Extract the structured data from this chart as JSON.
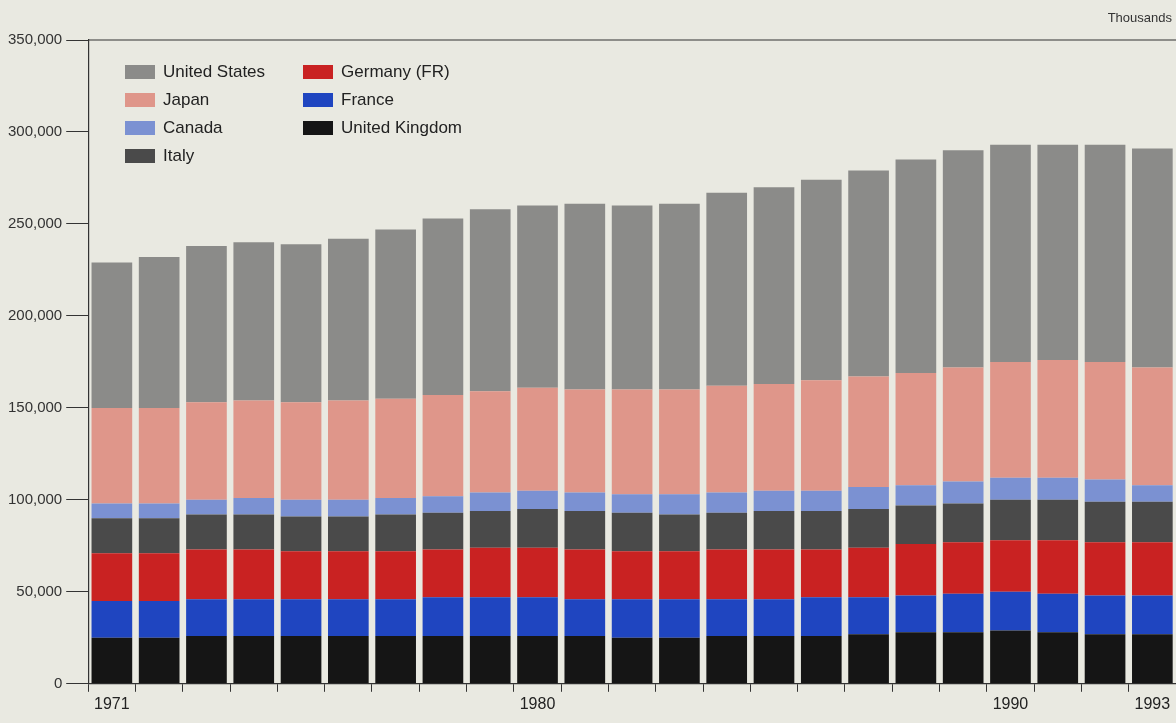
{
  "chart_data": {
    "type": "bar",
    "stacked": true,
    "legend": "top left",
    "grid": false,
    "annotations": [
      "Thousands"
    ],
    "categories": [
      "1971",
      null,
      null,
      null,
      null,
      null,
      null,
      null,
      null,
      "1980",
      null,
      null,
      null,
      null,
      null,
      null,
      null,
      null,
      null,
      "1990",
      null,
      null,
      "1993"
    ],
    "ylim": [
      0,
      350000
    ],
    "yticks": [
      {
        "value": 0,
        "label": "0"
      },
      {
        "value": 50000,
        "label": "50,000"
      },
      {
        "value": 100000,
        "label": "100,000"
      },
      {
        "value": 150000,
        "label": "150,000"
      },
      {
        "value": 200000,
        "label": "200,000"
      },
      {
        "value": 250000,
        "label": "250,000"
      },
      {
        "value": 300000,
        "label": "300,000"
      },
      {
        "value": 350000,
        "label": "350,000"
      }
    ],
    "series": [
      {
        "name": "United Kingdom",
        "color": "#151515",
        "values": [
          25000,
          25000,
          26000,
          26000,
          26000,
          26000,
          26000,
          26000,
          26000,
          26000,
          26000,
          25000,
          25000,
          26000,
          26000,
          26000,
          27000,
          28000,
          28000,
          29000,
          28000,
          27000,
          27000
        ]
      },
      {
        "name": "France",
        "color": "#1f45c0",
        "values": [
          20000,
          20000,
          20000,
          20000,
          20000,
          20000,
          20000,
          21000,
          21000,
          21000,
          20000,
          21000,
          21000,
          20000,
          20000,
          21000,
          20000,
          20000,
          21000,
          21000,
          21000,
          21000,
          21000
        ]
      },
      {
        "name": "Germany (FR)",
        "color": "#c92222",
        "values": [
          26000,
          26000,
          27000,
          27000,
          26000,
          26000,
          26000,
          26000,
          27000,
          27000,
          27000,
          26000,
          26000,
          27000,
          27000,
          26000,
          27000,
          28000,
          28000,
          28000,
          29000,
          29000,
          29000
        ]
      },
      {
        "name": "Italy",
        "color": "#4a4a4a",
        "values": [
          19000,
          19000,
          19000,
          19000,
          19000,
          19000,
          20000,
          20000,
          20000,
          21000,
          21000,
          21000,
          20000,
          20000,
          21000,
          21000,
          21000,
          21000,
          21000,
          22000,
          22000,
          22000,
          22000
        ]
      },
      {
        "name": "Canada",
        "color": "#7b91d2",
        "values": [
          8000,
          8000,
          8000,
          9000,
          9000,
          9000,
          9000,
          9000,
          10000,
          10000,
          10000,
          10000,
          11000,
          11000,
          11000,
          11000,
          12000,
          11000,
          12000,
          12000,
          12000,
          12000,
          9000
        ]
      },
      {
        "name": "Japan",
        "color": "#df968a",
        "values": [
          52000,
          52000,
          53000,
          53000,
          53000,
          54000,
          54000,
          55000,
          55000,
          56000,
          56000,
          57000,
          57000,
          58000,
          58000,
          60000,
          60000,
          61000,
          62000,
          63000,
          64000,
          64000,
          64000
        ]
      },
      {
        "name": "United States",
        "color": "#8b8b89",
        "values": [
          79000,
          82000,
          85000,
          86000,
          86000,
          88000,
          92000,
          96000,
          99000,
          99000,
          101000,
          100000,
          101000,
          105000,
          107000,
          109000,
          112000,
          116000,
          118000,
          118000,
          117000,
          118000,
          119000
        ]
      }
    ]
  }
}
